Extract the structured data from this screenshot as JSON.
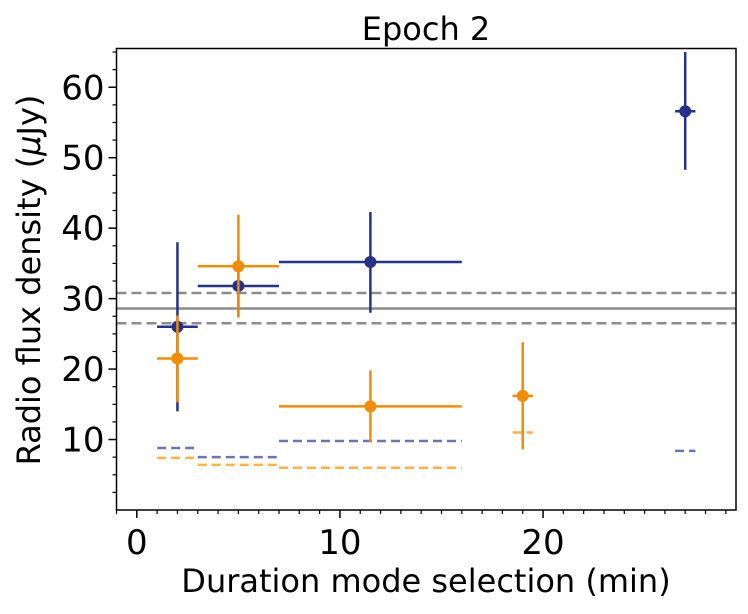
{
  "chart_data": {
    "type": "scatter",
    "title": "Epoch 2",
    "xlabel": "Duration mode selection (min)",
    "ylabel_text": "Radio flux density (",
    "ylabel_mu": "μ",
    "ylabel_unit": "Jy)",
    "xlim": [
      -1,
      29.5
    ],
    "ylim": [
      0,
      65.5
    ],
    "xticks": [
      0,
      10,
      20
    ],
    "xtick_labels": [
      "0",
      "10",
      "20"
    ],
    "yticks": [
      10,
      20,
      30,
      40,
      50,
      60
    ],
    "ytick_labels": [
      "10",
      "20",
      "30",
      "40",
      "50",
      "60"
    ],
    "x_minor_step": 1,
    "y_minor_step": 2.5,
    "grid": false,
    "colors": {
      "blue": "#24328c",
      "blue_dashed": "#6b74b8",
      "orange": "#f28c00",
      "orange_dashed": "#ffb347",
      "reference": "#8c8c8c"
    },
    "reference_lines": [
      {
        "name": "mean",
        "y": 28.6,
        "style": "solid"
      },
      {
        "name": "upper",
        "y": 30.8,
        "style": "dashed"
      },
      {
        "name": "lower",
        "y": 26.5,
        "style": "dashed"
      }
    ],
    "series": [
      {
        "name": "blue",
        "color": "blue",
        "points": [
          {
            "x": 2,
            "xmin": 1,
            "xmax": 3,
            "y": 26.0,
            "ylo": 14.0,
            "yhi": 38.0
          },
          {
            "x": 5,
            "xmin": 3,
            "xmax": 7,
            "y": 31.8,
            "ylo": 27.5,
            "yhi": 36.0
          },
          {
            "x": 11.5,
            "xmin": 7,
            "xmax": 16,
            "y": 35.2,
            "ylo": 28.0,
            "yhi": 42.3
          },
          {
            "x": 27,
            "xmin": 26.5,
            "xmax": 27.5,
            "y": 56.6,
            "ylo": 48.3,
            "yhi": 65.0
          }
        ],
        "limits": [
          {
            "xmin": 1,
            "xmax": 3,
            "y": 8.8
          },
          {
            "xmin": 3,
            "xmax": 7,
            "y": 7.5
          },
          {
            "xmin": 7,
            "xmax": 16,
            "y": 9.8
          },
          {
            "xmin": 26.5,
            "xmax": 27.5,
            "y": 8.4
          }
        ]
      },
      {
        "name": "orange",
        "color": "orange",
        "points": [
          {
            "x": 2,
            "xmin": 1,
            "xmax": 3,
            "y": 21.5,
            "ylo": 15.3,
            "yhi": 27.6
          },
          {
            "x": 5,
            "xmin": 3,
            "xmax": 7,
            "y": 34.6,
            "ylo": 27.3,
            "yhi": 41.9
          },
          {
            "x": 11.5,
            "xmin": 7,
            "xmax": 16,
            "y": 14.7,
            "ylo": 9.6,
            "yhi": 19.8
          },
          {
            "x": 19,
            "xmin": 18.5,
            "xmax": 19.5,
            "y": 16.2,
            "ylo": 8.6,
            "yhi": 23.8
          }
        ],
        "limits": [
          {
            "xmin": 1,
            "xmax": 3,
            "y": 7.4
          },
          {
            "xmin": 3,
            "xmax": 7,
            "y": 6.4
          },
          {
            "xmin": 7,
            "xmax": 16,
            "y": 6.0
          },
          {
            "xmin": 18.5,
            "xmax": 19.5,
            "y": 11.0
          }
        ]
      }
    ]
  }
}
